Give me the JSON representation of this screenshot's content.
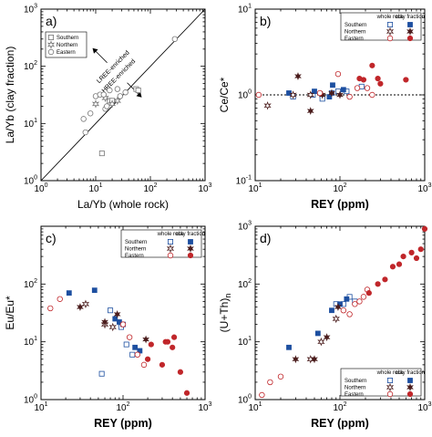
{
  "chart_data": [
    {
      "panel": "a)",
      "type": "scatter",
      "xlabel": "La/Yb (whole rock)",
      "ylabel": "La/Yb (clay fraction)",
      "xscale": "log",
      "yscale": "log",
      "xlim": [
        1,
        1000
      ],
      "ylim": [
        1,
        1000
      ],
      "xticks": [
        "10^0",
        "10^1",
        "10^2",
        "10^3"
      ],
      "yticks": [
        "10^0",
        "10^1",
        "10^2",
        "10^3"
      ],
      "legend": {
        "placement": "top-left",
        "entries": [
          "Southern",
          "Northern",
          "Eastern"
        ]
      },
      "reference_line": "1:1",
      "annotations": [
        "LREE-enriched",
        "HREE-enriched"
      ],
      "series": [
        {
          "name": "Southern",
          "marker": "open-square",
          "points": [
            [
              13,
              3
            ],
            [
              18,
              25
            ],
            [
              20,
              25
            ],
            [
              55,
              40
            ],
            [
              60,
              38
            ]
          ]
        },
        {
          "name": "Northern",
          "marker": "open-star",
          "points": [
            [
              10,
              22
            ],
            [
              15,
              28
            ],
            [
              20,
              22
            ],
            [
              25,
              25
            ]
          ]
        },
        {
          "name": "Eastern",
          "marker": "open-circle",
          "points": [
            [
              6,
              12
            ],
            [
              6.5,
              7
            ],
            [
              8,
              15
            ],
            [
              10,
              30
            ],
            [
              12,
              32
            ],
            [
              14,
              32
            ],
            [
              15,
              18
            ],
            [
              16,
              20
            ],
            [
              18,
              38
            ],
            [
              25,
              40
            ],
            [
              28,
              30
            ],
            [
              35,
              35
            ],
            [
              280,
              300
            ]
          ]
        }
      ]
    },
    {
      "panel": "b)",
      "type": "scatter",
      "xlabel": "REY",
      "xunit": "(ppm)",
      "ylabel": "Ce/Ce*",
      "xscale": "log",
      "yscale": "log",
      "xlim": [
        10,
        1000
      ],
      "ylim": [
        0.1,
        10
      ],
      "xticks": [
        "10^1",
        "10^2",
        "10^3"
      ],
      "yticks": [
        "10^-1",
        "10^0",
        "10^1"
      ],
      "legend": {
        "placement": "top-right",
        "header": [
          "whole rock",
          "clay fraction"
        ],
        "rows": [
          "Southern",
          "Northern",
          "Eastern"
        ]
      },
      "reference_line": "y=1 dashed",
      "series": [
        {
          "name": "Southern",
          "fill": "whole rock",
          "marker": "open-square",
          "points": [
            [
              28,
              0.95
            ],
            [
              48,
              1.0
            ],
            [
              62,
              0.9
            ],
            [
              80,
              1.05
            ],
            [
              95,
              1.1
            ],
            [
              120,
              1.1
            ],
            [
              180,
              1.25
            ]
          ]
        },
        {
          "name": "Southern",
          "fill": "clay fraction",
          "marker": "filled-square",
          "points": [
            [
              25,
              1.05
            ],
            [
              50,
              1.1
            ],
            [
              75,
              0.95
            ],
            [
              82,
              1.3
            ],
            [
              110,
              1.15
            ]
          ]
        },
        {
          "name": "Northern",
          "fill": "whole rock",
          "marker": "open-star",
          "points": [
            [
              14,
              0.75
            ],
            [
              28,
              1.0
            ],
            [
              45,
              1.0
            ]
          ]
        },
        {
          "name": "Northern",
          "fill": "clay fraction",
          "marker": "filled-star",
          "points": [
            [
              32,
              1.65
            ],
            [
              45,
              0.65
            ],
            [
              62,
              1.0
            ],
            [
              80,
              1.05
            ],
            [
              100,
              1.0
            ]
          ]
        },
        {
          "name": "Eastern",
          "fill": "whole rock",
          "marker": "open-circle",
          "points": [
            [
              11,
              1.0
            ],
            [
              58,
              1.05
            ],
            [
              95,
              1.75
            ],
            [
              130,
              0.95
            ],
            [
              160,
              1.2
            ],
            [
              210,
              1.2
            ],
            [
              240,
              1.0
            ]
          ]
        },
        {
          "name": "Eastern",
          "fill": "clay fraction",
          "marker": "filled-circle",
          "points": [
            [
              170,
              1.55
            ],
            [
              190,
              1.5
            ],
            [
              240,
              2.2
            ],
            [
              280,
              1.55
            ],
            [
              300,
              1.35
            ],
            [
              600,
              1.5
            ]
          ]
        }
      ]
    },
    {
      "panel": "c)",
      "type": "scatter",
      "xlabel": "REY",
      "xunit": "(ppm)",
      "ylabel": "Eu/Eu*",
      "xscale": "log",
      "yscale": "log",
      "xlim": [
        10,
        1000
      ],
      "ylim": [
        1,
        1000
      ],
      "xticks": [
        "10^1",
        "10^2",
        "10^3"
      ],
      "yticks": [
        "10^0",
        "10^1",
        "10^2"
      ],
      "legend": {
        "placement": "top-right",
        "header": [
          "whole rock",
          "clay fraction"
        ],
        "rows": [
          "Southern",
          "Northern",
          "Eastern"
        ]
      },
      "series": [
        {
          "name": "Southern",
          "fill": "whole rock",
          "marker": "open-square",
          "points": [
            [
              70,
              35
            ],
            [
              95,
              18
            ],
            [
              110,
              9
            ],
            [
              130,
              6
            ],
            [
              55,
              2.8
            ]
          ]
        },
        {
          "name": "Southern",
          "fill": "clay fraction",
          "marker": "filled-square",
          "points": [
            [
              22,
              70
            ],
            [
              45,
              78
            ],
            [
              80,
              25
            ],
            [
              90,
              22
            ],
            [
              100,
              20
            ],
            [
              140,
              8
            ],
            [
              160,
              7
            ]
          ]
        },
        {
          "name": "Northern",
          "fill": "whole rock",
          "marker": "open-star",
          "points": [
            [
              35,
              45
            ],
            [
              60,
              20
            ],
            [
              75,
              18
            ]
          ]
        },
        {
          "name": "Northern",
          "fill": "clay fraction",
          "marker": "filled-star",
          "points": [
            [
              30,
              40
            ],
            [
              60,
              22
            ],
            [
              85,
              30
            ],
            [
              190,
              11
            ]
          ]
        },
        {
          "name": "Eastern",
          "fill": "whole rock",
          "marker": "open-circle",
          "points": [
            [
              13,
              38
            ],
            [
              17,
              55
            ],
            [
              100,
              20
            ],
            [
              120,
              12
            ],
            [
              150,
              6
            ],
            [
              180,
              4
            ]
          ]
        },
        {
          "name": "Eastern",
          "fill": "clay fraction",
          "marker": "filled-circle",
          "points": [
            [
              200,
              5
            ],
            [
              220,
              9
            ],
            [
              300,
              4
            ],
            [
              330,
              10
            ],
            [
              350,
              10
            ],
            [
              400,
              8
            ],
            [
              420,
              12
            ],
            [
              500,
              3
            ],
            [
              600,
              1.3
            ]
          ]
        }
      ]
    },
    {
      "panel": "d)",
      "type": "scatter",
      "xlabel": "REY",
      "xunit": "(ppm)",
      "ylabel": "(U+Th)",
      "ylabel_sub": "n",
      "xscale": "log",
      "yscale": "log",
      "xlim": [
        10,
        1000
      ],
      "ylim": [
        1,
        1000
      ],
      "xticks": [
        "10^1",
        "10^2",
        "10^3"
      ],
      "yticks": [
        "10^0",
        "10^1",
        "10^2",
        "10^3"
      ],
      "legend": {
        "placement": "bottom-right",
        "header": [
          "whole rock",
          "clay fraction"
        ],
        "rows": [
          "Southern",
          "Northern",
          "Eastern"
        ]
      },
      "series": [
        {
          "name": "Southern",
          "fill": "whole rock",
          "marker": "open-square",
          "points": [
            [
              90,
              45
            ],
            [
              110,
              45
            ],
            [
              130,
              60
            ],
            [
              150,
              50
            ]
          ]
        },
        {
          "name": "Southern",
          "fill": "clay fraction",
          "marker": "filled-square",
          "points": [
            [
              25,
              8
            ],
            [
              55,
              14
            ],
            [
              80,
              35
            ],
            [
              100,
              45
            ],
            [
              120,
              55
            ]
          ]
        },
        {
          "name": "Northern",
          "fill": "whole rock",
          "marker": "open-star",
          "points": [
            [
              45,
              5
            ],
            [
              60,
              10
            ],
            [
              90,
              25
            ]
          ]
        },
        {
          "name": "Northern",
          "fill": "clay fraction",
          "marker": "filled-star",
          "points": [
            [
              30,
              5
            ],
            [
              50,
              5
            ],
            [
              70,
              12
            ],
            [
              95,
              40
            ]
          ]
        },
        {
          "name": "Eastern",
          "fill": "whole rock",
          "marker": "open-circle",
          "points": [
            [
              12,
              1.2
            ],
            [
              15,
              2
            ],
            [
              20,
              2.5
            ],
            [
              110,
              35
            ],
            [
              130,
              30
            ],
            [
              150,
              45
            ],
            [
              170,
              50
            ],
            [
              190,
              60
            ],
            [
              210,
              80
            ]
          ]
        },
        {
          "name": "Eastern",
          "fill": "clay fraction",
          "marker": "filled-circle",
          "points": [
            [
              220,
              70
            ],
            [
              280,
              100
            ],
            [
              340,
              120
            ],
            [
              420,
              200
            ],
            [
              500,
              220
            ],
            [
              560,
              300
            ],
            [
              700,
              350
            ],
            [
              800,
              280
            ],
            [
              900,
              400
            ],
            [
              1000,
              900
            ]
          ]
        }
      ]
    }
  ],
  "colors": {
    "southern": "#1d4fa0",
    "northern": "#4a1c1c",
    "eastern": "#c0262a",
    "axis": "#000000",
    "neutral_marker": "#777777"
  }
}
